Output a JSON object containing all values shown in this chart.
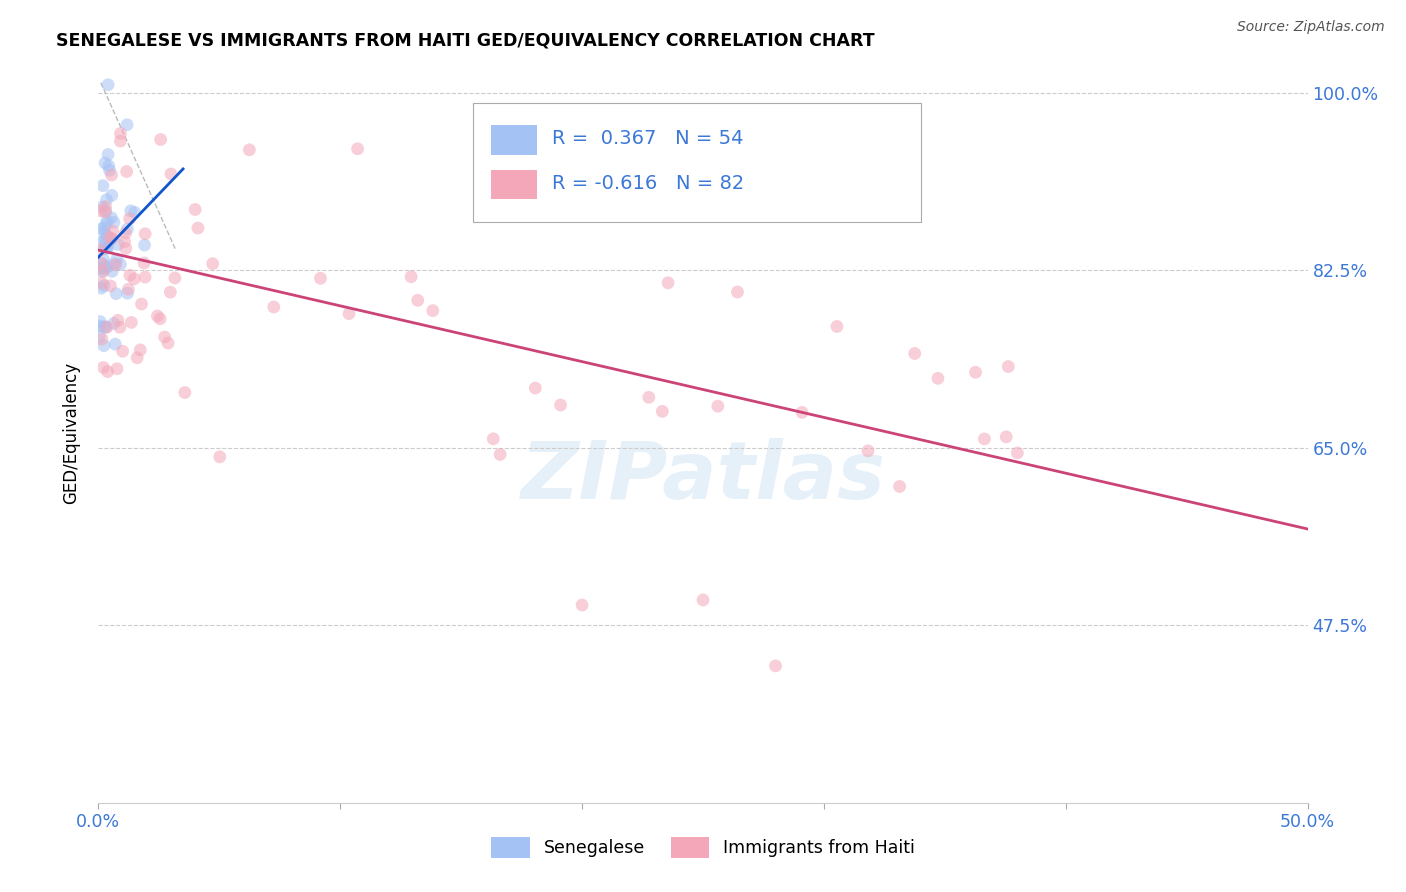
{
  "title": "SENEGALESE VS IMMIGRANTS FROM HAITI GED/EQUIVALENCY CORRELATION CHART",
  "source": "Source: ZipAtlas.com",
  "ylabel": "GED/Equivalency",
  "legend_label1": "Senegalese",
  "legend_label2": "Immigrants from Haiti",
  "R1": 0.367,
  "N1": 54,
  "R2": -0.616,
  "N2": 82,
  "blue_color": "#a4c2f4",
  "pink_color": "#f4a7b9",
  "line_blue": "#1155cc",
  "line_pink": "#cc4477",
  "xmin": 0.0,
  "xmax": 50.0,
  "ymin": 30.0,
  "ymax": 103.0,
  "ytick_vals": [
    47.5,
    65.0,
    82.5,
    100.0
  ],
  "ytick_labels": [
    "47.5%",
    "65.0%",
    "82.5%",
    "100.0%"
  ],
  "marker_size": 85,
  "marker_alpha": 0.55,
  "blue_line_x0": 0.0,
  "blue_line_x1": 3.5,
  "blue_line_y0": 83.8,
  "blue_line_y1": 92.5,
  "pink_line_x0": 0.0,
  "pink_line_x1": 50.0,
  "pink_line_y0": 84.5,
  "pink_line_y1": 57.0,
  "ref_line_x0": 0.1,
  "ref_line_x1": 3.2,
  "ref_line_y0": 101.0,
  "ref_line_y1": 84.5
}
